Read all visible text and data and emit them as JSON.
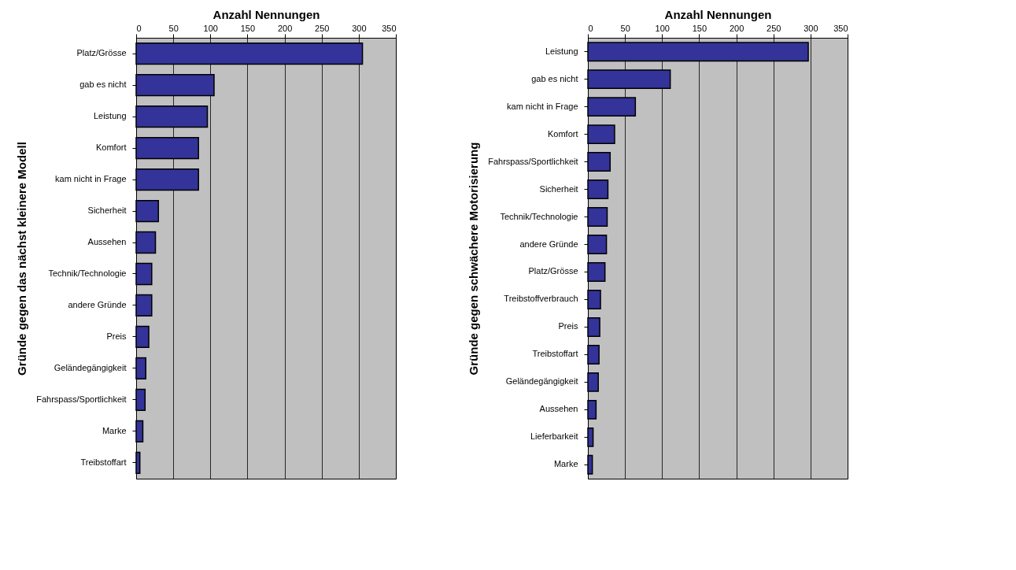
{
  "chart_data": [
    {
      "type": "bar",
      "orientation": "horizontal",
      "xlabel": "Anzahl Nennungen",
      "ylabel": "Gründe gegen das nächst kleinere Modell",
      "categories": [
        "Platz/Grösse",
        "gab es nicht",
        "Leistung",
        "Komfort",
        "kam nicht in Frage",
        "Sicherheit",
        "Aussehen",
        "Technik/Technologie",
        "andere Gründe",
        "Preis",
        "Geländegängigkeit",
        "Fahrspass/Sportlichkeit",
        "Marke",
        "Treibstoffart"
      ],
      "values": [
        305,
        105,
        96,
        84,
        84,
        30,
        26,
        21,
        21,
        17,
        13,
        12,
        9,
        5
      ],
      "color": "#333399",
      "xlim": [
        0,
        350
      ],
      "xticks": [
        0,
        50,
        100,
        150,
        200,
        250,
        300,
        350
      ],
      "grid": "x"
    },
    {
      "type": "bar",
      "orientation": "horizontal",
      "xlabel": "Anzahl Nennungen",
      "ylabel": "Gründe gegen schwächere Motorisierung",
      "categories": [
        "Leistung",
        "gab es nicht",
        "kam nicht in Frage",
        "Komfort",
        "Fahrspass/Sportlichkeit",
        "Sicherheit",
        "Technik/Technologie",
        "andere Gründe",
        "Platz/Grösse",
        "Treibstoffverbrauch",
        "Preis",
        "Treibstoffart",
        "Geländegängigkeit",
        "Aussehen",
        "Lieferbarkeit",
        "Marke"
      ],
      "values": [
        297,
        111,
        64,
        36,
        30,
        27,
        26,
        25,
        23,
        17,
        16,
        15,
        14,
        11,
        7,
        6
      ],
      "color": "#333399",
      "xlim": [
        0,
        350
      ],
      "xticks": [
        0,
        50,
        100,
        150,
        200,
        250,
        300,
        350
      ],
      "grid": "x"
    }
  ]
}
